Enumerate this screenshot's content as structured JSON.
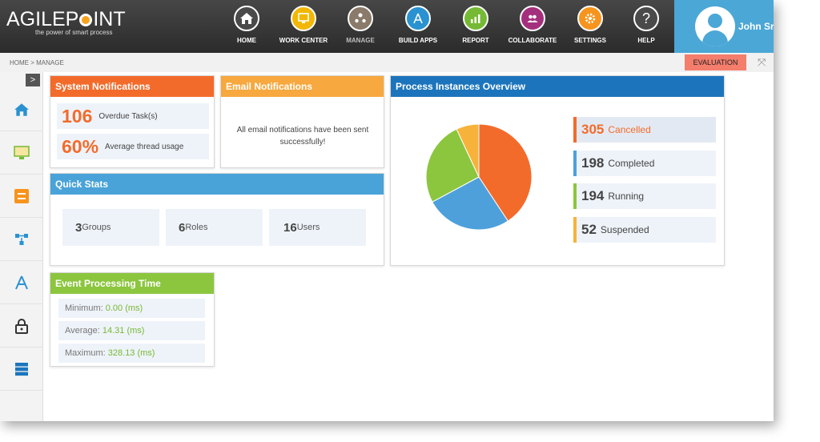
{
  "logo": {
    "text_left": "AGILEP",
    "text_right": "INT",
    "tagline": "the power of smart process"
  },
  "nav": [
    {
      "label": "HOME",
      "icon": "home-icon",
      "color": "#4a4a4a"
    },
    {
      "label": "WORK CENTER",
      "icon": "work-center-icon",
      "color": "#f2b705"
    },
    {
      "label": "MANAGE",
      "icon": "manage-icon",
      "color": "#8a7a6a"
    },
    {
      "label": "BUILD APPS",
      "icon": "compass-icon",
      "color": "#2a92d0"
    },
    {
      "label": "REPORT",
      "icon": "report-icon",
      "color": "#76b935"
    },
    {
      "label": "COLLABORATE",
      "icon": "collaborate-icon",
      "color": "#a4307d"
    },
    {
      "label": "SETTINGS",
      "icon": "gear-icon",
      "color": "#f7941d"
    },
    {
      "label": "HELP",
      "icon": "help-icon",
      "color": "#4a4a4a"
    }
  ],
  "user": {
    "name": "John Sr"
  },
  "breadcrumb": "HOME > MANAGE",
  "evaluation_label": "EVALUATION",
  "system_notifications": {
    "title": "System Notifications",
    "overdue_value": "106",
    "overdue_label": "Overdue Task(s)",
    "thread_value": "60%",
    "thread_label": "Average thread usage"
  },
  "email_notifications": {
    "title": "Email Notifications",
    "message": "All email notifications have been sent successfully!"
  },
  "quick_stats": {
    "title": "Quick Stats",
    "items": [
      {
        "value": "3",
        "label": "Groups"
      },
      {
        "value": "6",
        "label": "Roles"
      },
      {
        "value": "16",
        "label": "Users"
      }
    ]
  },
  "event_processing": {
    "title": "Event Processing Time",
    "rows": [
      {
        "label": "Minimum: ",
        "value": "0.00 (ms)"
      },
      {
        "label": "Average: ",
        "value": "14.31 (ms)"
      },
      {
        "label": "Maximum: ",
        "value": "328.13 (ms)"
      }
    ]
  },
  "process_instances": {
    "title": "Process Instances Overview",
    "stats": [
      {
        "value": "305",
        "label": "Cancelled",
        "color": "#f36b2b"
      },
      {
        "value": "198",
        "label": "Completed",
        "color": "#4ea0db"
      },
      {
        "value": "194",
        "label": "Running",
        "color": "#8cc63e"
      },
      {
        "value": "52",
        "label": "Suspended",
        "color": "#f7b23b"
      }
    ]
  }
}
